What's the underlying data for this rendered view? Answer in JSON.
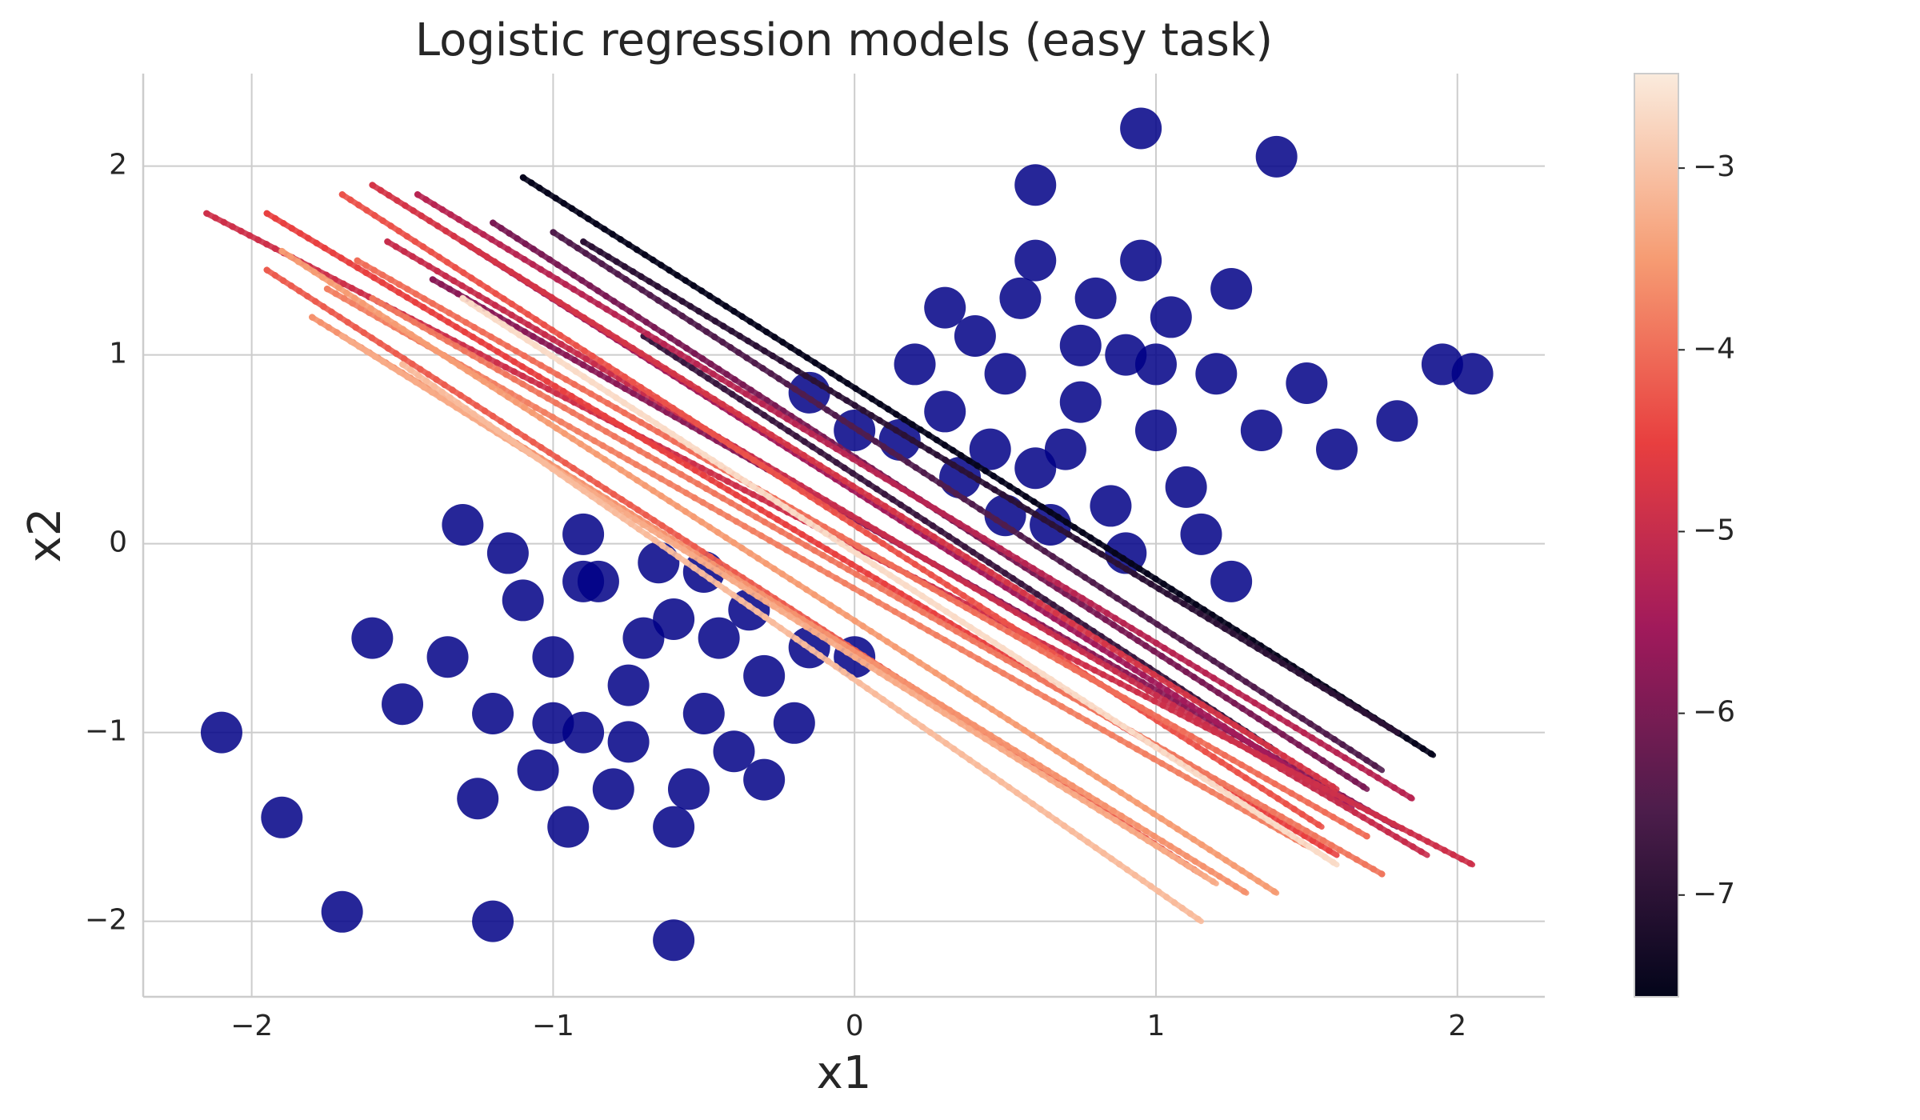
{
  "chart_data": {
    "type": "scatter",
    "title": "Logistic regression models (easy task)",
    "xlabel": "x1",
    "ylabel": "x2",
    "xlim": [
      -2.36,
      2.29
    ],
    "ylim": [
      -2.4,
      2.49
    ],
    "xticks": [
      {
        "value": -2,
        "label": "−2"
      },
      {
        "value": -1,
        "label": "−1"
      },
      0,
      1,
      2
    ],
    "yticks": [
      {
        "value": -2,
        "label": "−2"
      },
      {
        "value": -1,
        "label": "−1"
      },
      0,
      1,
      2
    ],
    "grid": true,
    "points": {
      "color": "#000086",
      "x": [
        0.75,
        0.5,
        1.0,
        0.6,
        0.9,
        0.3,
        1.2,
        0.8,
        0.4,
        1.1,
        0.65,
        0.95,
        0.2,
        1.35,
        0.7,
        0.55,
        0.85,
        1.05,
        0.45,
        1.25,
        0.35,
        0.15,
        1.5,
        0.0,
        1.6,
        0.9,
        0.6,
        1.0,
        0.75,
        0.3,
        1.15,
        0.5,
        1.4,
        1.95,
        0.95,
        1.25,
        0.6,
        1.8,
        -0.15,
        2.05,
        -0.75,
        -0.5,
        -1.0,
        -0.6,
        -0.9,
        -0.3,
        -1.2,
        -0.8,
        -0.4,
        -1.1,
        -0.65,
        -0.95,
        -0.2,
        -1.35,
        -0.7,
        -0.55,
        -0.85,
        -1.05,
        -0.45,
        -1.25,
        -0.35,
        -0.15,
        -1.5,
        0.0,
        -1.6,
        -0.9,
        -0.6,
        -1.0,
        -0.75,
        -0.3,
        -1.15,
        -0.5,
        -2.1,
        -1.9,
        -1.2,
        -0.6,
        -1.7,
        -1.3,
        -0.9
      ],
      "y": [
        0.75,
        0.9,
        0.6,
        0.4,
        1.0,
        0.7,
        0.9,
        1.3,
        1.1,
        0.3,
        0.1,
        1.5,
        0.95,
        0.6,
        0.5,
        1.3,
        0.2,
        1.2,
        0.5,
        1.35,
        0.35,
        0.55,
        0.85,
        0.6,
        0.5,
        -0.05,
        1.5,
        0.95,
        1.05,
        1.25,
        0.05,
        0.15,
        2.05,
        0.95,
        2.2,
        -0.2,
        1.9,
        0.65,
        0.8,
        0.9,
        -0.75,
        -0.9,
        -0.6,
        -0.4,
        -1.0,
        -0.7,
        -0.9,
        -1.3,
        -1.1,
        -0.3,
        -0.1,
        -1.5,
        -0.95,
        -0.6,
        -0.5,
        -1.3,
        -0.2,
        -1.2,
        -0.5,
        -1.35,
        -0.35,
        -0.55,
        -0.85,
        -0.6,
        -0.5,
        0.05,
        -1.5,
        -0.95,
        -1.05,
        -1.25,
        -0.05,
        -0.15,
        -1.0,
        -1.45,
        -2.0,
        -2.1,
        -1.95,
        0.1,
        -0.2
      ]
    },
    "models": [
      {
        "x": [
          -1.1,
          1.92
        ],
        "y": [
          1.94,
          -1.12
        ],
        "c": -7.5
      },
      {
        "x": [
          -0.9,
          1.8
        ],
        "y": [
          1.6,
          -1.0
        ],
        "c": -7.0
      },
      {
        "x": [
          -0.7,
          1.4
        ],
        "y": [
          1.1,
          -1.1
        ],
        "c": -6.8
      },
      {
        "x": [
          -1.0,
          1.75
        ],
        "y": [
          1.65,
          -1.2
        ],
        "c": -6.5
      },
      {
        "x": [
          -1.2,
          1.7
        ],
        "y": [
          1.7,
          -1.3
        ],
        "c": -6.0
      },
      {
        "x": [
          -1.4,
          1.8
        ],
        "y": [
          1.4,
          -1.5
        ],
        "c": -5.8
      },
      {
        "x": [
          -1.3,
          1.65
        ],
        "y": [
          1.6,
          -1.4
        ],
        "c": -5.5
      },
      {
        "x": [
          -1.45,
          1.85
        ],
        "y": [
          1.85,
          -1.35
        ],
        "c": -5.2
      },
      {
        "x": [
          -1.55,
          1.9
        ],
        "y": [
          1.6,
          -1.65
        ],
        "c": -5.0
      },
      {
        "x": [
          -2.15,
          2.05
        ],
        "y": [
          1.75,
          -1.7
        ],
        "c": -4.9
      },
      {
        "x": [
          -1.6,
          1.6
        ],
        "y": [
          1.9,
          -1.3
        ],
        "c": -4.8
      },
      {
        "x": [
          -1.95,
          1.6
        ],
        "y": [
          1.75,
          -1.65
        ],
        "c": -4.5
      },
      {
        "x": [
          -1.7,
          1.55
        ],
        "y": [
          1.85,
          -1.5
        ],
        "c": -4.3
      },
      {
        "x": [
          -1.95,
          1.15
        ],
        "y": [
          1.45,
          -1.75
        ],
        "c": -4.2
      },
      {
        "x": [
          -1.65,
          1.7
        ],
        "y": [
          1.5,
          -1.55
        ],
        "c": -4.0
      },
      {
        "x": [
          -1.6,
          1.75
        ],
        "y": [
          1.3,
          -1.75
        ],
        "c": -3.9
      },
      {
        "x": [
          -1.75,
          1.5
        ],
        "y": [
          1.35,
          -1.6
        ],
        "c": -3.8
      },
      {
        "x": [
          -1.8,
          1.3
        ],
        "y": [
          1.2,
          -1.85
        ],
        "c": -3.6
      },
      {
        "x": [
          -1.9,
          1.4
        ],
        "y": [
          1.55,
          -1.85
        ],
        "c": -3.5
      },
      {
        "x": [
          -1.7,
          1.2
        ],
        "y": [
          1.1,
          -1.8
        ],
        "c": -3.3
      },
      {
        "x": [
          -1.5,
          1.15
        ],
        "y": [
          0.95,
          -2.0
        ],
        "c": -3.1
      },
      {
        "x": [
          -1.3,
          1.6
        ],
        "y": [
          1.3,
          -1.7
        ],
        "c": -2.7
      }
    ],
    "colorbar": {
      "lim": [
        -7.56,
        -2.48
      ],
      "ticks": [
        {
          "value": -7,
          "label": "−7"
        },
        {
          "value": -6,
          "label": "−6"
        },
        {
          "value": -5,
          "label": "−5"
        },
        {
          "value": -4,
          "label": "−4"
        },
        {
          "value": -3,
          "label": "−3"
        }
      ],
      "colormap": [
        "#03051a",
        "#4c1d4b",
        "#a11a5b",
        "#e83f3f",
        "#f69c73",
        "#faebdd"
      ]
    }
  }
}
